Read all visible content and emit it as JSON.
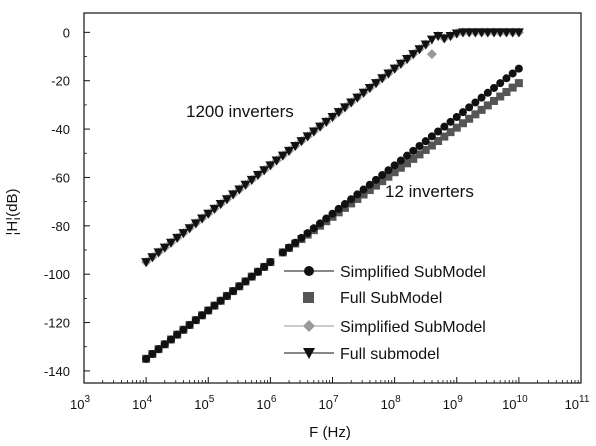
{
  "chart_data": {
    "type": "scatter",
    "title": "",
    "xlabel": "F (Hz)",
    "ylabel": "¦H¦(dB)",
    "x_scale": "log",
    "xlim": [
      1000,
      100000000000
    ],
    "ylim": [
      -145,
      8
    ],
    "x_ticks": [
      1000,
      10000,
      100000,
      1000000,
      10000000,
      100000000,
      1000000000,
      10000000000,
      100000000000
    ],
    "x_tick_labels": [
      {
        "base": "10",
        "exp": "3"
      },
      {
        "base": "10",
        "exp": "4"
      },
      {
        "base": "10",
        "exp": "5"
      },
      {
        "base": "10",
        "exp": "6"
      },
      {
        "base": "10",
        "exp": "7"
      },
      {
        "base": "10",
        "exp": "8"
      },
      {
        "base": "10",
        "exp": "9"
      },
      {
        "base": "10",
        "exp": "10"
      },
      {
        "base": "10",
        "exp": "11"
      }
    ],
    "y_ticks": [
      0,
      -20,
      -40,
      -60,
      -80,
      -100,
      -120,
      -140
    ],
    "y_tick_labels": [
      "0",
      "-20",
      "-40",
      "-60",
      "-80",
      "-100",
      "-120",
      "-140"
    ],
    "annotations": [
      "1200 inverters",
      "12 inverters"
    ],
    "legend_position": "lower-right",
    "series": [
      {
        "name": "Simplified SubModel",
        "marker": "circle",
        "color": "#111111",
        "segments": [
          {
            "x_log_start": 4.0,
            "x_log_end": 6.0,
            "y_start": -135,
            "y_end": -95
          },
          {
            "x_log_start": 6.2,
            "x_log_end": 10.0,
            "y_start": -91,
            "y_end": -15
          }
        ]
      },
      {
        "name": "Full SubModel",
        "marker": "square",
        "color": "#555555",
        "segments": [
          {
            "x_log_start": 4.0,
            "x_log_end": 6.0,
            "y_start": -135,
            "y_end": -95
          },
          {
            "x_log_start": 6.2,
            "x_log_end": 10.0,
            "y_start": -91,
            "y_end": -21
          }
        ]
      },
      {
        "name": "Simplified SubModel",
        "marker": "diamond",
        "color": "#999999",
        "points_rule": {
          "x_log_start": 4.0,
          "x_log_end": 10.0,
          "corner_x_log": 8.8,
          "slope_db_per_decade": 20,
          "y_at_start": -95,
          "plateau": 0,
          "dip_x_log": 8.6,
          "dip_y": -9
        }
      },
      {
        "name": "Full submodel",
        "marker": "triangle-down",
        "color": "#111111",
        "points_rule": {
          "x_log_start": 4.0,
          "x_log_end": 10.0,
          "corner_x_log": 8.8,
          "slope_db_per_decade": 20,
          "y_at_start": -95,
          "plateau": 0
        }
      }
    ]
  },
  "colors": {
    "axis": "#111111",
    "circle": "#111111",
    "square": "#555555",
    "diamond": "#999999",
    "triangle": "#111111"
  }
}
